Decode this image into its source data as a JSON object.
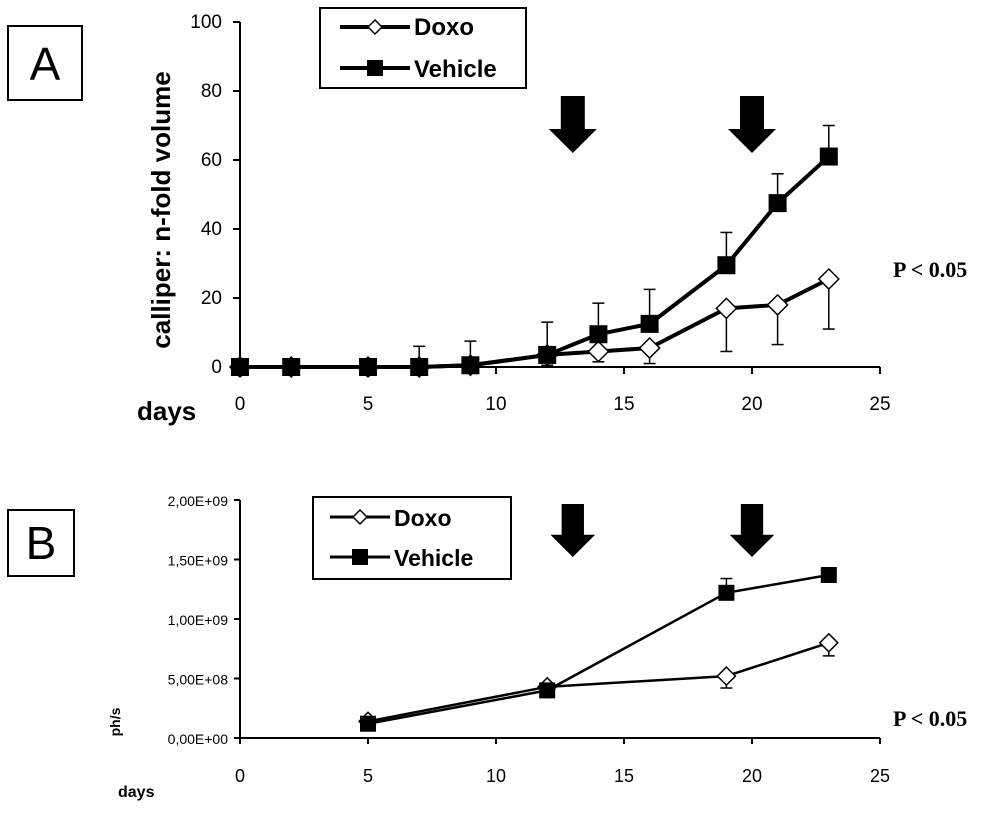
{
  "chart_data": [
    {
      "panel": "A",
      "type": "line",
      "xlabel": "days",
      "ylabel": "calliper: n-fold volume",
      "xlim": [
        0,
        25
      ],
      "ylim": [
        0,
        100
      ],
      "xticks": [
        0,
        5,
        10,
        15,
        20,
        25
      ],
      "yticks": [
        0,
        20,
        40,
        60,
        80,
        100
      ],
      "xtick_labels": [
        "0",
        "5",
        "10",
        "15",
        "20",
        "25"
      ],
      "ytick_labels": [
        "0",
        "20",
        "40",
        "60",
        "80",
        "100"
      ],
      "annotation": "P < 0.05",
      "arrows_at_day": [
        13,
        20
      ],
      "series": [
        {
          "name": "Doxo",
          "marker": "open-diamond",
          "x": [
            0,
            2,
            5,
            7,
            9,
            12,
            14,
            16,
            19,
            21,
            23
          ],
          "y": [
            0,
            0,
            0,
            0,
            0.5,
            3.5,
            4.5,
            5.5,
            17,
            18,
            25.5
          ],
          "err": [
            0,
            0,
            0,
            0,
            0,
            3,
            3,
            4.5,
            12.5,
            11.5,
            14.5
          ],
          "err_dir": "down"
        },
        {
          "name": "Vehicle",
          "marker": "filled-square",
          "x": [
            0,
            2,
            5,
            7,
            9,
            12,
            14,
            16,
            19,
            21,
            23
          ],
          "y": [
            0,
            0,
            0,
            0,
            0.5,
            3.5,
            9.5,
            12.5,
            29.5,
            47.5,
            61
          ],
          "err": [
            0,
            0,
            0,
            6,
            7,
            9.5,
            9,
            10,
            9.5,
            8.5,
            9
          ],
          "err_dir": "up"
        }
      ]
    },
    {
      "panel": "B",
      "type": "line",
      "xlabel": "days",
      "ylabel": "ph/s",
      "xlim": [
        0,
        25
      ],
      "ylim": [
        0,
        2000000000
      ],
      "xticks": [
        0,
        5,
        10,
        15,
        20,
        25
      ],
      "yticks": [
        0,
        500000000,
        1000000000,
        1500000000,
        2000000000
      ],
      "xtick_labels": [
        "0",
        "5",
        "10",
        "15",
        "20",
        "25"
      ],
      "ytick_labels": [
        "0,00E+00",
        "5,00E+08",
        "1,00E+09",
        "1,50E+09",
        "2,00E+09"
      ],
      "annotation": "P < 0.05",
      "arrows_at_day": [
        13,
        20
      ],
      "series": [
        {
          "name": "Doxo",
          "marker": "open-diamond",
          "x": [
            5,
            12,
            19,
            23
          ],
          "y": [
            140000000,
            430000000,
            520000000,
            800000000
          ],
          "err": [
            0,
            0,
            100000000,
            110000000
          ],
          "err_dir": "down"
        },
        {
          "name": "Vehicle",
          "marker": "filled-square",
          "x": [
            5,
            12,
            19,
            23
          ],
          "y": [
            120000000,
            400000000,
            1220000000,
            1370000000
          ],
          "err": [
            0,
            0,
            120000000,
            40000000
          ],
          "err_dir": "up"
        }
      ]
    }
  ]
}
